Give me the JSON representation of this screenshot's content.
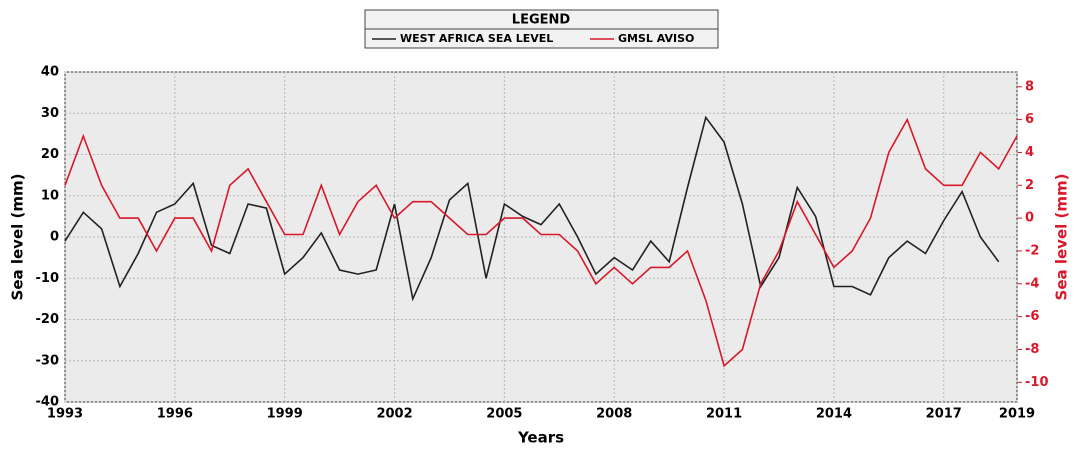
{
  "chart_data": {
    "type": "line",
    "legend_title": "LEGEND",
    "xlabel": "Years",
    "ylabel": "Sea level (mm)",
    "y2label": "Sea level (mm)",
    "x": [
      1993,
      1993.5,
      1994,
      1994.5,
      1995,
      1995.5,
      1996,
      1996.5,
      1997,
      1997.5,
      1998,
      1998.5,
      1999,
      1999.5,
      2000,
      2000.5,
      2001,
      2001.5,
      2002,
      2002.5,
      2003,
      2003.5,
      2004,
      2004.5,
      2005,
      2005.5,
      2006,
      2006.5,
      2007,
      2007.5,
      2008,
      2008.5,
      2009,
      2009.5,
      2010,
      2010.5,
      2011,
      2011.5,
      2012,
      2012.5,
      2013,
      2013.5,
      2014,
      2014.5,
      2015,
      2015.5,
      2016,
      2016.5,
      2017,
      2017.5,
      2018,
      2018.5,
      2019
    ],
    "series": [
      {
        "name": "WEST AFRICA SEA LEVEL",
        "color": "#222222",
        "values": [
          -1,
          6,
          2,
          -12,
          -4,
          6,
          8,
          13,
          -2,
          -4,
          8,
          7,
          -9,
          -5,
          1,
          -8,
          -9,
          -8,
          8,
          -15,
          -5,
          9,
          13,
          -10,
          8,
          5,
          3,
          8,
          0,
          -9,
          -5,
          -8,
          -1,
          -6,
          12,
          29,
          23,
          8,
          -12,
          -5,
          12,
          5,
          -12,
          -12,
          -14,
          -5,
          -1,
          -4,
          4,
          11,
          0,
          -6,
          null
        ]
      },
      {
        "name": "GMSL AVISO",
        "color": "#d7192b",
        "axis": "y2",
        "values": [
          2,
          5,
          2,
          0,
          0,
          -2,
          0,
          0,
          -2,
          2,
          3,
          1,
          -1,
          -1,
          2,
          -1,
          1,
          2,
          0,
          1,
          1,
          0,
          -1,
          -1,
          0,
          0,
          -1,
          -1,
          -2,
          -4,
          -3,
          -4,
          -3,
          -3,
          -2,
          -5,
          -9,
          -8,
          -4,
          -2,
          1,
          -1,
          -3,
          -2,
          0,
          4,
          6,
          3,
          2,
          2,
          4,
          3,
          5
        ]
      }
    ],
    "xlim": [
      1993,
      2019
    ],
    "xticks": [
      1993,
      1996,
      1999,
      2002,
      2005,
      2008,
      2011,
      2014,
      2017,
      2019
    ],
    "ylim": [
      -40,
      40
    ],
    "yticks": [
      -40,
      -30,
      -20,
      -10,
      0,
      10,
      20,
      30,
      40
    ],
    "y2lim": [
      -11.2,
      8.9
    ],
    "y2ticks": [
      -10,
      -8,
      -6,
      -4,
      -2,
      0,
      2,
      4,
      6,
      8
    ],
    "grid": true
  }
}
